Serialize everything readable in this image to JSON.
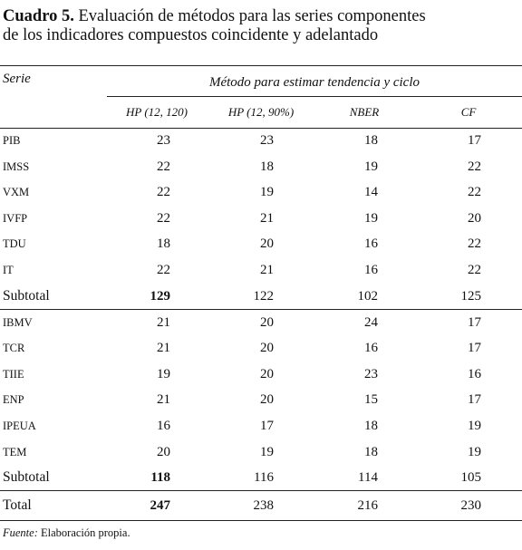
{
  "title": {
    "label": "Cuadro 5.",
    "lines": [
      "Evaluación de métodos para las series componentes",
      "de los indicadores compuestos coincidente y adelantado"
    ]
  },
  "table": {
    "row_header": "Serie",
    "group_header": "Método para estimar tendencia y ciclo",
    "columns": [
      "HP (12, 120)",
      "HP (12, 90%)",
      "NBER",
      "CF"
    ],
    "groups": [
      {
        "rows": [
          {
            "serie": "PIB",
            "values": [
              23,
              23,
              18,
              17
            ]
          },
          {
            "serie": "IMSS",
            "values": [
              22,
              18,
              19,
              22
            ]
          },
          {
            "serie": "VXM",
            "values": [
              22,
              19,
              14,
              22
            ]
          },
          {
            "serie": "IVFP",
            "values": [
              22,
              21,
              19,
              20
            ]
          },
          {
            "serie": "TDU",
            "values": [
              18,
              20,
              16,
              22
            ]
          },
          {
            "serie": "IT",
            "values": [
              22,
              21,
              16,
              22
            ]
          }
        ],
        "subtotal": {
          "label": "Subtotal",
          "values": [
            129,
            122,
            102,
            125
          ]
        }
      },
      {
        "rows": [
          {
            "serie": "IBMV",
            "values": [
              21,
              20,
              24,
              17
            ]
          },
          {
            "serie": "TCR",
            "values": [
              21,
              20,
              16,
              17
            ]
          },
          {
            "serie": "TIIE",
            "values": [
              19,
              20,
              23,
              16
            ]
          },
          {
            "serie": "ENP",
            "values": [
              21,
              20,
              15,
              17
            ]
          },
          {
            "serie": "IPEUA",
            "values": [
              16,
              17,
              18,
              19
            ]
          },
          {
            "serie": "TEM",
            "values": [
              20,
              19,
              18,
              19
            ]
          }
        ],
        "subtotal": {
          "label": "Subtotal",
          "values": [
            118,
            116,
            114,
            105
          ]
        }
      }
    ],
    "total": {
      "label": "Total",
      "values": [
        247,
        238,
        216,
        230
      ]
    }
  },
  "footnote": {
    "label": "Fuente:",
    "text": "Elaboración propia."
  }
}
